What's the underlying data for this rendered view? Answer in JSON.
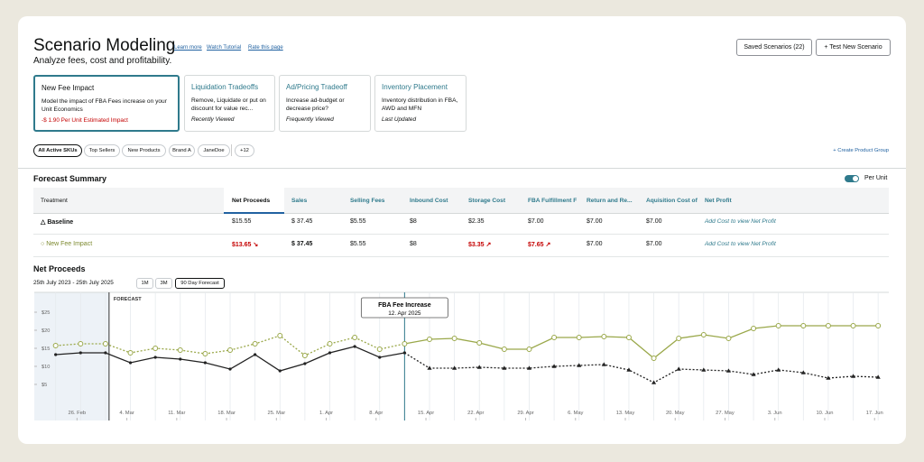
{
  "header": {
    "title": "Scenario Modeling",
    "links": [
      "Learn more",
      "Watch Tutorial",
      "Rate this page"
    ],
    "subtitle": "Analyze fees, cost and profitability.",
    "buttons": [
      "Saved Scenarios (22)",
      "+ Test New Scenario"
    ]
  },
  "cards": [
    {
      "title": "New Fee Impact",
      "description": "Model the impact of FBA Fees increase on your Unit Economics",
      "footer": "-$ 1.90 Per Unit Estimated Impact"
    },
    {
      "title": "Liquidation Tradeoffs",
      "description": "Remove, Liquidate or put on discount for value rec...",
      "footer": "Recently Viewed"
    },
    {
      "title": "Ad/Pricing Tradeoff",
      "description": "Increase ad-budget or decrease price?",
      "footer": "Frequently Viewed"
    },
    {
      "title": "Inventory Placement",
      "description": "Inventory distribution in FBA, AWD and MFN",
      "footer": "Last Updated"
    }
  ],
  "chips": [
    "All Active SKUs",
    "Top Sellers",
    "New Products",
    "Brand A",
    "JaneDoe",
    "+12"
  ],
  "create_group": "+ Create Product Group",
  "summary": {
    "title": "Forecast Summary",
    "toggle": "Per Unit"
  },
  "table": {
    "headers": [
      "Treatment",
      "Net Proceeds",
      "Sales",
      "Selling Fees",
      "Inbound Cost",
      "Storage Cost",
      "FBA Fulfillment F",
      "Return and Re...",
      "Aquisition Cost of",
      "Net Profit"
    ],
    "rows": [
      [
        "Baseline",
        "$15.55",
        "$ 37.45",
        "$5.55",
        "$8",
        "$2.35",
        "$7.00",
        "$7.00",
        "$7.00",
        "Add Cost to view Net Profit"
      ],
      [
        "New Fee Impact",
        "$13.65",
        "$ 37.45",
        "$5.55",
        "$8",
        "$3.35",
        "$7.65",
        "$7.00",
        "$7.00",
        "Add Cost to view Net Profit"
      ]
    ]
  },
  "chart_section": {
    "title": "Net Proceeds",
    "date_range": "25th July 2023 - 25th July 2025",
    "ranges": [
      "1M",
      "3M",
      "90 Day Forecast"
    ]
  },
  "chart_data": {
    "type": "line",
    "x": [
      -3,
      0.5,
      4,
      7.5,
      11,
      14.5,
      18,
      21.5,
      25,
      28.5,
      32,
      35.5,
      39,
      42.5,
      46,
      49.5,
      53,
      56.5,
      60,
      63.5,
      67,
      70.5,
      74,
      77.5,
      81,
      84.5,
      88,
      91.5,
      95,
      98.5,
      102,
      105.5,
      109,
      112.5
    ],
    "series": [
      {
        "name": "Baseline",
        "color": "#222222",
        "values": [
          13.25,
          13.75,
          13.75,
          11,
          12.5,
          12,
          11,
          9.25,
          13.25,
          8.75,
          10.75,
          13.75,
          15.5,
          12.5,
          13.75,
          9.5,
          9.5,
          9.75,
          9.5,
          9.5,
          10,
          10.25,
          10.5,
          9,
          5.5,
          9.25,
          9,
          8.75,
          7.75,
          9,
          8.25,
          6.75,
          7.25,
          7
        ]
      },
      {
        "name": "New Fee Impact",
        "color": "#9aa84a",
        "values": [
          15.75,
          16.25,
          16.25,
          13.75,
          15,
          14.5,
          13.5,
          14.5,
          16.25,
          18.5,
          13,
          16.25,
          18,
          14.75,
          16.25,
          17.5,
          17.75,
          16.5,
          14.75,
          14.75,
          18,
          18,
          18.25,
          18,
          12.25,
          17.75,
          18.75,
          17.75,
          20.5,
          21.25,
          21.25,
          21.25,
          21.25,
          21.25
        ]
      }
    ],
    "xlim": [
      -6,
      114
    ],
    "xticks": [
      {
        "value": 0,
        "label": "26. Feb"
      },
      {
        "value": 7,
        "label": "4. Mar"
      },
      {
        "value": 14,
        "label": "11. Mar"
      },
      {
        "value": 21,
        "label": "18. Mar"
      },
      {
        "value": 28,
        "label": "25. Mar"
      },
      {
        "value": 35,
        "label": "1. Apr"
      },
      {
        "value": 42,
        "label": "8. Apr"
      },
      {
        "value": 49,
        "label": "15. Apr"
      },
      {
        "value": 56,
        "label": "22. Apr"
      },
      {
        "value": 63,
        "label": "29. Apr"
      },
      {
        "value": 70,
        "label": "6. May"
      },
      {
        "value": 77,
        "label": "13. May"
      },
      {
        "value": 84,
        "label": "20. May"
      },
      {
        "value": 91,
        "label": "27. May"
      },
      {
        "value": 98,
        "label": "3. Jun"
      },
      {
        "value": 105,
        "label": "10. Jun"
      },
      {
        "value": 112,
        "label": "17. Jun"
      }
    ],
    "ylim": [
      0,
      30
    ],
    "yticks": [
      {
        "value": 25,
        "label": "$25"
      },
      {
        "value": 20,
        "label": "$20"
      },
      {
        "value": 15,
        "label": "$15"
      },
      {
        "value": 10,
        "label": "$10"
      },
      {
        "value": 5,
        "label": "$5"
      }
    ],
    "annotations": [
      {
        "x": 4.5,
        "text": "FORECAST"
      },
      {
        "x": 46,
        "text": "FBA Fee Increase",
        "subtext": "12. Apr 2025"
      }
    ]
  }
}
